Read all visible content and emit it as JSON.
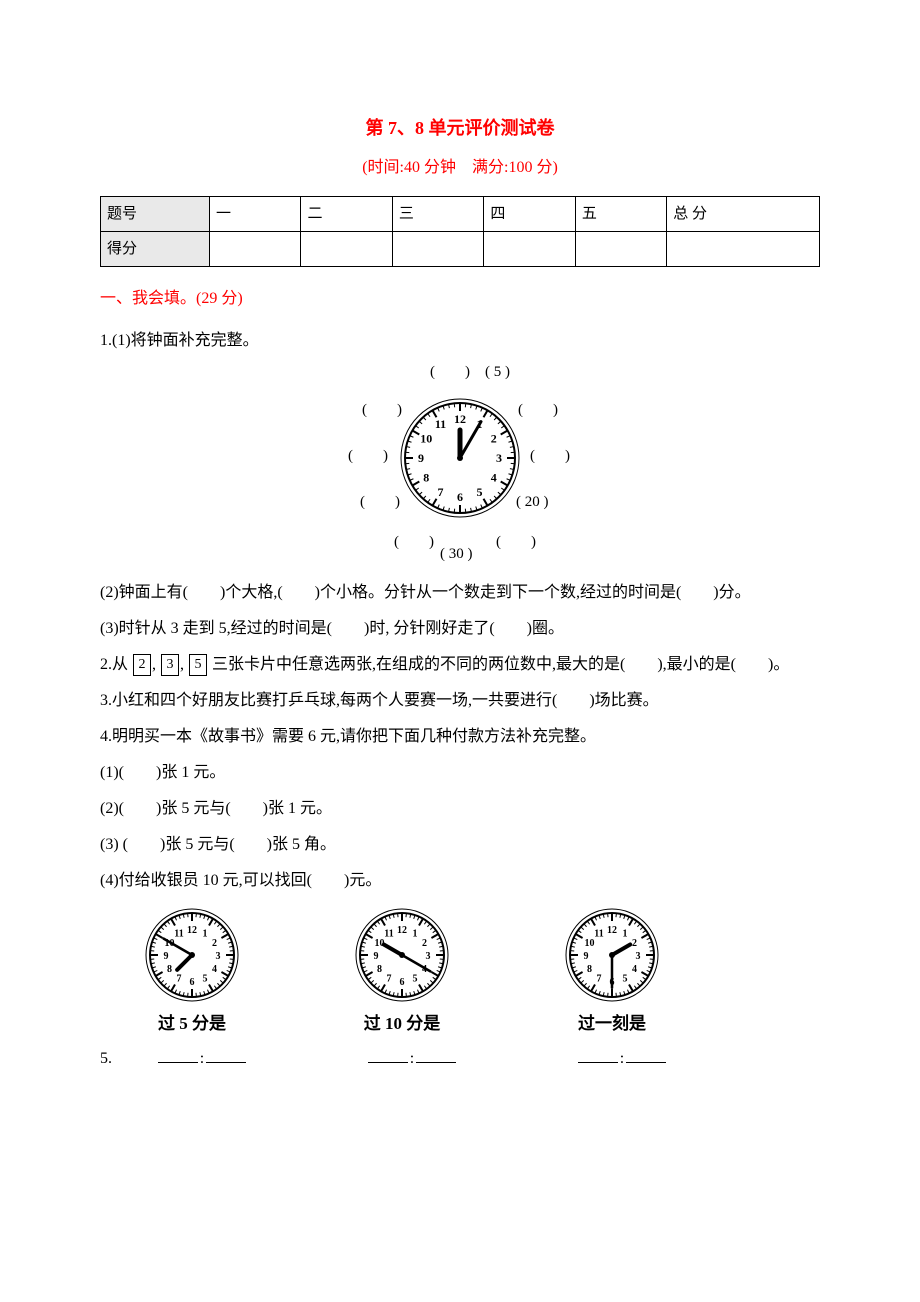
{
  "title": "第 7、8 单元评价测试卷",
  "subtitle": "(时间:40 分钟　满分:100 分)",
  "score_table": {
    "row1_label": "题号",
    "row2_label": "得分",
    "cols": [
      "一",
      "二",
      "三",
      "四",
      "五",
      "总 分"
    ]
  },
  "section1": {
    "heading": "一、我会填。(29 分)",
    "q1_intro": "1.(1)将钟面补充完整。",
    "clockface": {
      "labels": {
        "top": "(　　)",
        "five": "( 5 )",
        "left_upper": "(　　)",
        "right_upper": "(　　)",
        "left_mid": "(　　)",
        "right_mid": "(　　)",
        "left_lower": "(　　)",
        "twenty": "( 20 )",
        "bottom_left": "(　　)",
        "thirty": "( 30 )",
        "bottom_right": "(　　)"
      },
      "dial_numbers": [
        "12",
        "1",
        "2",
        "3",
        "4",
        "5",
        "6",
        "7",
        "8",
        "9",
        "10",
        "11"
      ],
      "radius": 55,
      "tick_count": 60,
      "face_color": "#ffffff",
      "stroke": "#000000",
      "hour_hand": {
        "angle_deg": 0,
        "len": 28,
        "width": 5
      },
      "minute_hand": {
        "angle_deg": 30,
        "len": 42,
        "width": 3
      }
    },
    "q1_2": "(2)钟面上有(　　)个大格,(　　)个小格。分针从一个数走到下一个数,经过的时间是(　　)分。",
    "q1_3": "(3)时针从 3 走到 5,经过的时间是(　　)时, 分针刚好走了(　　)圈。",
    "q2": {
      "prefix": "2.从",
      "digits": [
        "2",
        "3",
        "5"
      ],
      "rest": "三张卡片中任意选两张,在组成的不同的两位数中,最大的是(　　),最小的是(　　)。"
    },
    "q3": "3.小红和四个好朋友比赛打乒乓球,每两个人要赛一场,一共要进行(　　)场比赛。",
    "q4_intro": "4.明明买一本《故事书》需要 6 元,请你把下面几种付款方法补充完整。",
    "q4_1": "(1)(　　)张 1 元。",
    "q4_2": "(2)(　　)张 5 元与(　　)张 1 元。",
    "q4_3": "(3) (　　)张 5 元与(　　)张 5 角。",
    "q4_4": "(4)付给收银员 10 元,可以找回(　　)元。",
    "small_clocks": [
      {
        "caption": "过 5 分是",
        "hour_angle": 225,
        "minute_angle": 300,
        "radius": 42,
        "stroke": "#000000"
      },
      {
        "caption": "过 10 分是",
        "hour_angle": 300,
        "minute_angle": 120,
        "radius": 42,
        "stroke": "#000000"
      },
      {
        "caption": "过一刻是",
        "hour_angle": 60,
        "minute_angle": 180,
        "radius": 42,
        "stroke": "#000000"
      }
    ],
    "q5_label": "5.",
    "q5_blank_sep": ":"
  }
}
